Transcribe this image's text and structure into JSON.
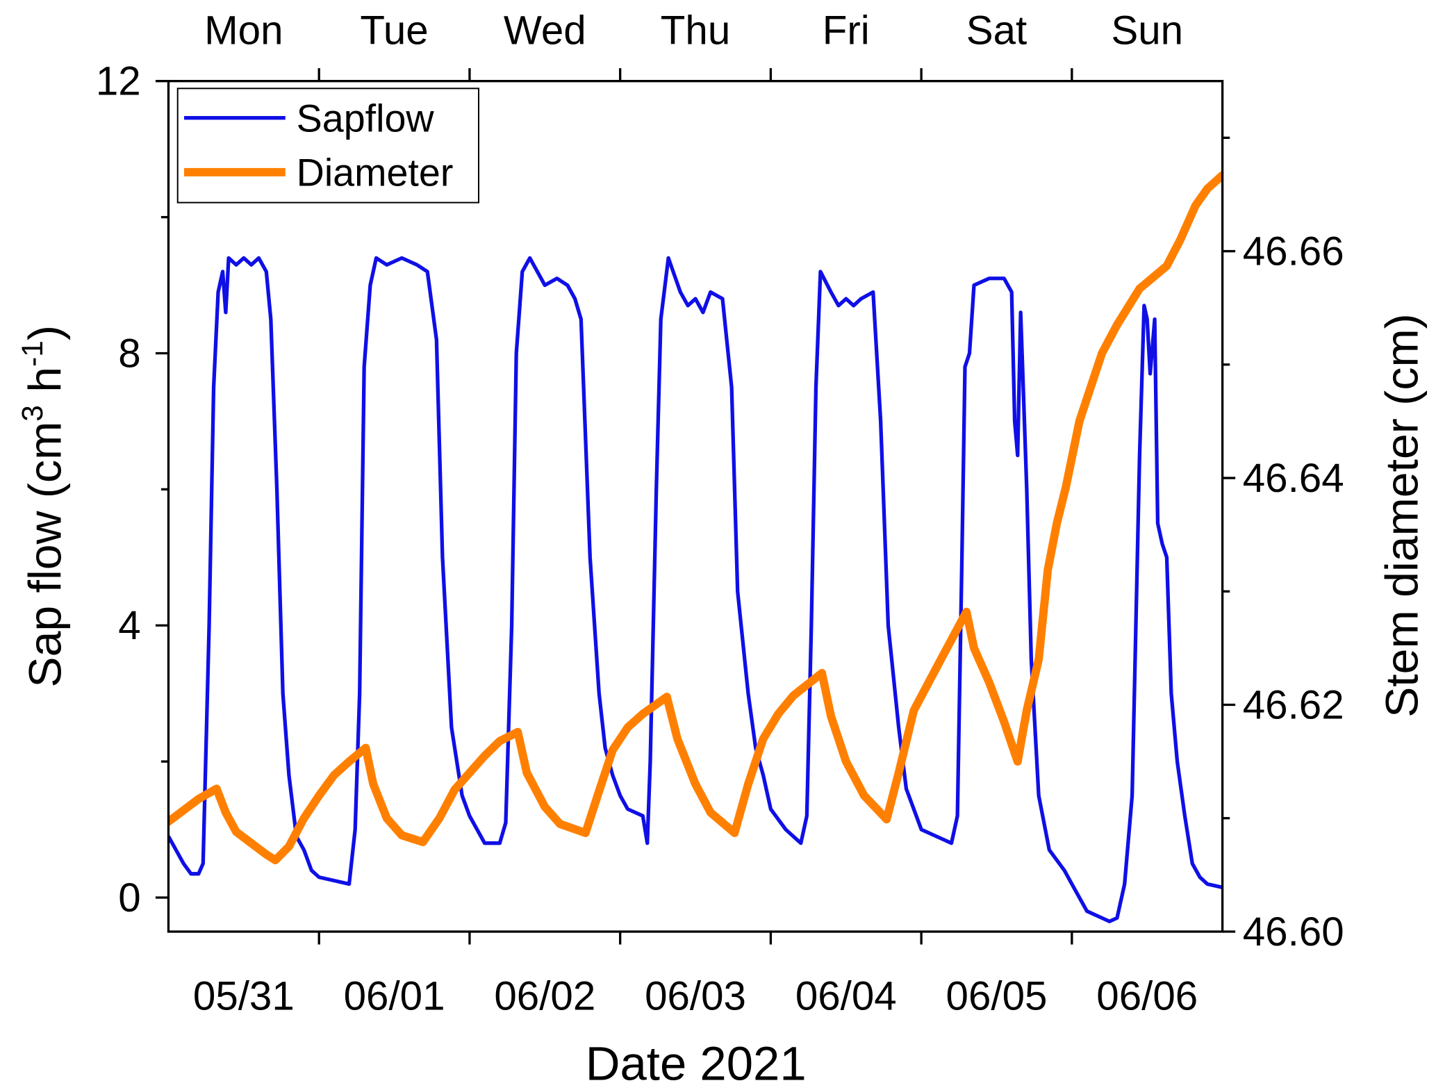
{
  "chart_data": {
    "type": "line",
    "title": "",
    "xlabel": "Date 2021",
    "ylabel_left": "Sap flow (cm3 h-1)",
    "ylabel_left_parts": {
      "main": "Sap flow (cm",
      "sup1": "3",
      "mid": " h",
      "sup2": "-1",
      "end": ")"
    },
    "ylabel_right": "Stem diameter (cm)",
    "x_unit": "days since 05/31/2021 00:00",
    "xlim": [
      0,
      7
    ],
    "ylim_left": [
      -0.5,
      12
    ],
    "ylim_right": [
      46.6,
      46.675
    ],
    "x_tick_labels": [
      "05/31",
      "06/01",
      "06/02",
      "06/03",
      "06/04",
      "06/05",
      "06/06"
    ],
    "top_tick_labels": [
      "Mon",
      "Tue",
      "Wed",
      "Thu",
      "Fri",
      "Sat",
      "Sun"
    ],
    "y_left_ticks": [
      "0",
      "4",
      "8",
      "12"
    ],
    "y_right_ticks": [
      "46.60",
      "46.62",
      "46.64",
      "46.66"
    ],
    "legend": {
      "placement": "top-left",
      "entries": [
        "Sapflow",
        "Diameter"
      ]
    },
    "series": [
      {
        "name": "Sapflow",
        "axis": "left",
        "color": "#0f0fe6",
        "points": [
          [
            0,
            0.9
          ],
          [
            0.05,
            0.7
          ],
          [
            0.1,
            0.5
          ],
          [
            0.15,
            0.35
          ],
          [
            0.2,
            0.35
          ],
          [
            0.23,
            0.5
          ],
          [
            0.27,
            4
          ],
          [
            0.3,
            7.5
          ],
          [
            0.33,
            8.9
          ],
          [
            0.36,
            9.2
          ],
          [
            0.38,
            8.6
          ],
          [
            0.4,
            9.4
          ],
          [
            0.45,
            9.3
          ],
          [
            0.5,
            9.4
          ],
          [
            0.55,
            9.3
          ],
          [
            0.6,
            9.4
          ],
          [
            0.65,
            9.2
          ],
          [
            0.68,
            8.5
          ],
          [
            0.72,
            6
          ],
          [
            0.76,
            3
          ],
          [
            0.8,
            1.8
          ],
          [
            0.85,
            0.9
          ],
          [
            0.9,
            0.7
          ],
          [
            0.95,
            0.4
          ],
          [
            1.0,
            0.3
          ],
          [
            1.1,
            0.25
          ],
          [
            1.2,
            0.2
          ],
          [
            1.24,
            1
          ],
          [
            1.27,
            3
          ],
          [
            1.3,
            7.8
          ],
          [
            1.34,
            9
          ],
          [
            1.38,
            9.4
          ],
          [
            1.45,
            9.3
          ],
          [
            1.55,
            9.4
          ],
          [
            1.65,
            9.3
          ],
          [
            1.72,
            9.2
          ],
          [
            1.78,
            8.2
          ],
          [
            1.82,
            5
          ],
          [
            1.88,
            2.5
          ],
          [
            1.95,
            1.5
          ],
          [
            2.0,
            1.2
          ],
          [
            2.1,
            0.8
          ],
          [
            2.2,
            0.8
          ],
          [
            2.24,
            1.1
          ],
          [
            2.28,
            4
          ],
          [
            2.31,
            8
          ],
          [
            2.35,
            9.2
          ],
          [
            2.4,
            9.4
          ],
          [
            2.5,
            9.0
          ],
          [
            2.58,
            9.1
          ],
          [
            2.65,
            9.0
          ],
          [
            2.7,
            8.8
          ],
          [
            2.74,
            8.5
          ],
          [
            2.8,
            5
          ],
          [
            2.86,
            3
          ],
          [
            2.9,
            2.2
          ],
          [
            2.95,
            1.8
          ],
          [
            3.0,
            1.5
          ],
          [
            3.05,
            1.3
          ],
          [
            3.15,
            1.2
          ],
          [
            3.18,
            0.8
          ],
          [
            3.2,
            2
          ],
          [
            3.24,
            6
          ],
          [
            3.27,
            8.5
          ],
          [
            3.32,
            9.4
          ],
          [
            3.4,
            8.9
          ],
          [
            3.45,
            8.7
          ],
          [
            3.5,
            8.8
          ],
          [
            3.55,
            8.6
          ],
          [
            3.6,
            8.9
          ],
          [
            3.68,
            8.8
          ],
          [
            3.74,
            7.5
          ],
          [
            3.78,
            4.5
          ],
          [
            3.85,
            3
          ],
          [
            3.9,
            2.2
          ],
          [
            3.95,
            1.8
          ],
          [
            4.0,
            1.3
          ],
          [
            4.1,
            1.0
          ],
          [
            4.2,
            0.8
          ],
          [
            4.24,
            1.2
          ],
          [
            4.27,
            4
          ],
          [
            4.3,
            7.5
          ],
          [
            4.33,
            9.2
          ],
          [
            4.4,
            8.9
          ],
          [
            4.45,
            8.7
          ],
          [
            4.5,
            8.8
          ],
          [
            4.55,
            8.7
          ],
          [
            4.6,
            8.8
          ],
          [
            4.68,
            8.9
          ],
          [
            4.73,
            7
          ],
          [
            4.78,
            4
          ],
          [
            4.85,
            2.5
          ],
          [
            4.9,
            1.6
          ],
          [
            4.95,
            1.3
          ],
          [
            5.0,
            1.0
          ],
          [
            5.1,
            0.9
          ],
          [
            5.2,
            0.8
          ],
          [
            5.24,
            1.2
          ],
          [
            5.27,
            5
          ],
          [
            5.29,
            7.8
          ],
          [
            5.32,
            8
          ],
          [
            5.35,
            9.0
          ],
          [
            5.45,
            9.1
          ],
          [
            5.55,
            9.1
          ],
          [
            5.6,
            8.9
          ],
          [
            5.62,
            7
          ],
          [
            5.64,
            6.5
          ],
          [
            5.66,
            8.6
          ],
          [
            5.7,
            6
          ],
          [
            5.73,
            3.5
          ],
          [
            5.78,
            1.5
          ],
          [
            5.85,
            0.7
          ],
          [
            5.95,
            0.4
          ],
          [
            6.0,
            0.2
          ],
          [
            6.1,
            -0.2
          ],
          [
            6.2,
            -0.3
          ],
          [
            6.25,
            -0.35
          ],
          [
            6.3,
            -0.3
          ],
          [
            6.35,
            0.2
          ],
          [
            6.4,
            1.5
          ],
          [
            6.45,
            6.5
          ],
          [
            6.48,
            8.7
          ],
          [
            6.5,
            8.5
          ],
          [
            6.52,
            7.7
          ],
          [
            6.55,
            8.5
          ],
          [
            6.57,
            5.5
          ],
          [
            6.6,
            5.2
          ],
          [
            6.63,
            5
          ],
          [
            6.66,
            3
          ],
          [
            6.7,
            2
          ],
          [
            6.75,
            1.2
          ],
          [
            6.8,
            0.5
          ],
          [
            6.85,
            0.3
          ],
          [
            6.9,
            0.2
          ],
          [
            7.0,
            0.15
          ]
        ]
      },
      {
        "name": "Diameter",
        "axis": "right",
        "color": "#ff8000",
        "points": [
          [
            0,
            46.6097
          ],
          [
            0.1,
            46.6107
          ],
          [
            0.2,
            46.6117
          ],
          [
            0.32,
            46.6126
          ],
          [
            0.38,
            46.6105
          ],
          [
            0.45,
            46.6088
          ],
          [
            0.55,
            46.6078
          ],
          [
            0.65,
            46.6068
          ],
          [
            0.71,
            46.6063
          ],
          [
            0.8,
            46.6075
          ],
          [
            0.9,
            46.61
          ],
          [
            1.0,
            46.612
          ],
          [
            1.1,
            46.6138
          ],
          [
            1.2,
            46.615
          ],
          [
            1.31,
            46.6162
          ],
          [
            1.36,
            46.613
          ],
          [
            1.45,
            46.61
          ],
          [
            1.55,
            46.6085
          ],
          [
            1.69,
            46.6079
          ],
          [
            1.8,
            46.61
          ],
          [
            1.9,
            46.6125
          ],
          [
            2.0,
            46.614
          ],
          [
            2.1,
            46.6155
          ],
          [
            2.2,
            46.6168
          ],
          [
            2.32,
            46.6176
          ],
          [
            2.38,
            46.614
          ],
          [
            2.5,
            46.611
          ],
          [
            2.6,
            46.6095
          ],
          [
            2.77,
            46.6087
          ],
          [
            2.85,
            46.612
          ],
          [
            2.95,
            46.616
          ],
          [
            3.05,
            46.618
          ],
          [
            3.15,
            46.6192
          ],
          [
            3.31,
            46.6207
          ],
          [
            3.38,
            46.617
          ],
          [
            3.5,
            46.613
          ],
          [
            3.6,
            46.6105
          ],
          [
            3.76,
            46.6087
          ],
          [
            3.85,
            46.613
          ],
          [
            3.95,
            46.617
          ],
          [
            4.05,
            46.6192
          ],
          [
            4.15,
            46.6208
          ],
          [
            4.34,
            46.6228
          ],
          [
            4.4,
            46.619
          ],
          [
            4.5,
            46.615
          ],
          [
            4.62,
            46.612
          ],
          [
            4.77,
            46.6099
          ],
          [
            4.85,
            46.614
          ],
          [
            4.95,
            46.6195
          ],
          [
            5.05,
            46.622
          ],
          [
            5.15,
            46.6245
          ],
          [
            5.3,
            46.6282
          ],
          [
            5.35,
            46.625
          ],
          [
            5.45,
            46.622
          ],
          [
            5.55,
            46.6185
          ],
          [
            5.64,
            46.615
          ],
          [
            5.7,
            46.6195
          ],
          [
            5.78,
            46.624
          ],
          [
            5.84,
            46.6319
          ],
          [
            5.9,
            46.636
          ],
          [
            5.96,
            46.6392
          ],
          [
            6.05,
            46.645
          ],
          [
            6.2,
            46.651
          ],
          [
            6.3,
            46.6535
          ],
          [
            6.45,
            46.6567
          ],
          [
            6.63,
            46.6587
          ],
          [
            6.72,
            46.661
          ],
          [
            6.82,
            46.664
          ],
          [
            6.9,
            46.6655
          ],
          [
            7.0,
            46.6667
          ]
        ]
      }
    ]
  }
}
